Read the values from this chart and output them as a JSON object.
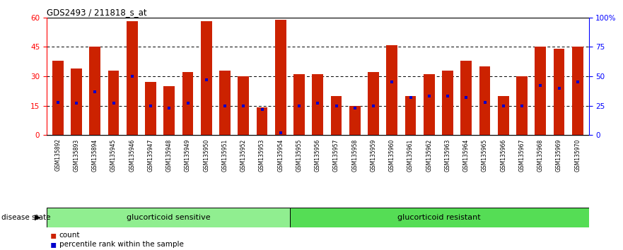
{
  "title": "GDS2493 / 211818_s_at",
  "samples": [
    "GSM135892",
    "GSM135893",
    "GSM135894",
    "GSM135945",
    "GSM135946",
    "GSM135947",
    "GSM135948",
    "GSM135949",
    "GSM135950",
    "GSM135951",
    "GSM135952",
    "GSM135953",
    "GSM135954",
    "GSM135955",
    "GSM135956",
    "GSM135957",
    "GSM135958",
    "GSM135959",
    "GSM135960",
    "GSM135961",
    "GSM135962",
    "GSM135963",
    "GSM135964",
    "GSM135965",
    "GSM135966",
    "GSM135967",
    "GSM135968",
    "GSM135969",
    "GSM135970"
  ],
  "counts": [
    38,
    34,
    45,
    33,
    58,
    27,
    25,
    32,
    58,
    33,
    30,
    14,
    59,
    31,
    31,
    20,
    15,
    32,
    46,
    20,
    31,
    33,
    38,
    35,
    20,
    30,
    45,
    44,
    45
  ],
  "percentile_ranks_pct": [
    28,
    27,
    37,
    27,
    50,
    25,
    23,
    27,
    47,
    25,
    25,
    22,
    2,
    25,
    27,
    25,
    23,
    25,
    45,
    32,
    33,
    33,
    32,
    28,
    25,
    25,
    42,
    40,
    45
  ],
  "sensitive_count": 13,
  "resistant_count": 16,
  "bar_color": "#CC2200",
  "percentile_color": "#0000CC",
  "plot_bg": "#FFFFFF",
  "xtick_bg": "#C8C8C8",
  "sensitive_color": "#90EE90",
  "resistant_color": "#55DD55",
  "ylim": [
    0,
    60
  ],
  "yticks_left": [
    0,
    15,
    30,
    45,
    60
  ],
  "yticks_right": [
    0,
    25,
    50,
    75,
    100
  ],
  "yr_labels": [
    "0",
    "25",
    "50",
    "75",
    "100%"
  ]
}
